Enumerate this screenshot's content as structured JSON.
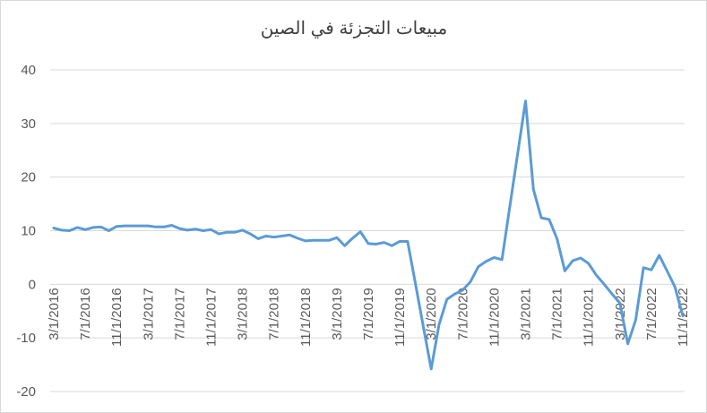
{
  "chart_data": {
    "type": "line",
    "title": "مبيعات التجزئة في الصين",
    "categories": [
      "3/1/2016",
      null,
      null,
      null,
      "7/1/2016",
      null,
      null,
      null,
      "11/1/2016",
      null,
      null,
      null,
      "3/1/2017",
      null,
      null,
      null,
      "7/1/2017",
      null,
      null,
      null,
      "11/1/2017",
      null,
      null,
      null,
      "3/1/2018",
      null,
      null,
      null,
      "7/1/2018",
      null,
      null,
      null,
      "11/1/2018",
      null,
      null,
      null,
      "3/1/2019",
      null,
      null,
      null,
      "7/1/2019",
      null,
      null,
      null,
      "11/1/2019",
      null,
      null,
      null,
      "3/1/2020",
      null,
      null,
      null,
      "7/1/2020",
      null,
      null,
      null,
      "11/1/2020",
      null,
      null,
      null,
      "3/1/2021",
      null,
      null,
      null,
      "7/1/2021",
      null,
      null,
      null,
      "11/1/2021",
      null,
      null,
      null,
      "3/1/2022",
      null,
      null,
      null,
      "7/1/2022",
      null,
      null,
      null,
      "11/1/2022"
    ],
    "series": [
      {
        "color": "#5b9bd5",
        "values": [
          10.5,
          10.1,
          10.0,
          10.6,
          10.2,
          10.6,
          10.7,
          10.0,
          10.8,
          10.9,
          10.9,
          10.9,
          10.9,
          10.7,
          10.7,
          11.0,
          10.4,
          10.1,
          10.3,
          10.0,
          10.2,
          9.4,
          9.7,
          9.7,
          10.1,
          9.4,
          8.5,
          9.0,
          8.8,
          9.0,
          9.2,
          8.6,
          8.1,
          8.2,
          8.2,
          8.2,
          8.7,
          7.2,
          8.6,
          9.8,
          7.6,
          7.5,
          7.8,
          7.2,
          8.0,
          8.0,
          0.1,
          -7.9,
          -15.8,
          -7.5,
          -2.8,
          -1.8,
          -1.1,
          0.5,
          3.3,
          4.3,
          5.0,
          4.6,
          14.5,
          24.4,
          34.2,
          17.7,
          12.4,
          12.1,
          8.5,
          2.5,
          4.4,
          4.9,
          3.9,
          1.7,
          0.0,
          -1.8,
          -3.5,
          -11.1,
          -6.7,
          3.1,
          2.7,
          5.4,
          2.5,
          -0.5,
          -5.9
        ]
      }
    ],
    "ylim": [
      -20,
      40
    ],
    "yticks": [
      -20,
      -10,
      0,
      10,
      20,
      30,
      40
    ],
    "grid": true
  }
}
